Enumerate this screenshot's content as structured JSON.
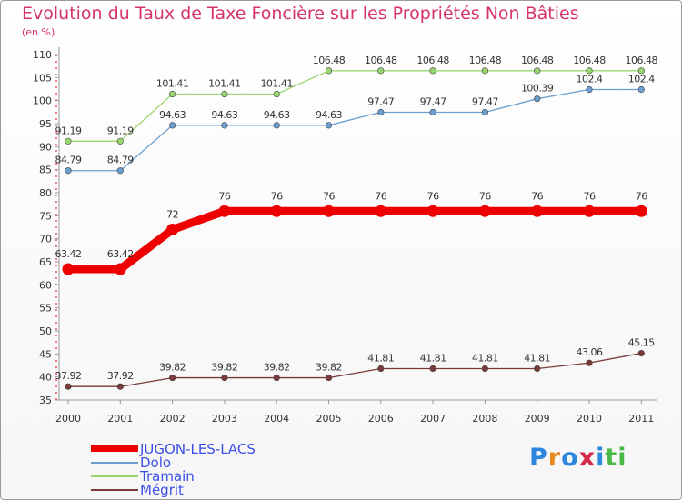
{
  "title": "Evolution du Taux de Taxe Foncière sur les Propriétés Non Bâties",
  "subtitle": "(en %)",
  "logo": {
    "text": "Proxiti",
    "letters": [
      {
        "ch": "P",
        "color": "#2e86de"
      },
      {
        "ch": "r",
        "color": "#e8891e"
      },
      {
        "ch": "o",
        "color": "#2e86de"
      },
      {
        "ch": "x",
        "color": "#d62a4b"
      },
      {
        "ch": "i",
        "color": "#2e86de"
      },
      {
        "ch": "t",
        "color": "#49b847"
      },
      {
        "ch": "i",
        "color": "#49b847"
      }
    ]
  },
  "chart_data": {
    "type": "line",
    "title": "Evolution du Taux de Taxe Foncière sur les Propriétés Non Bâties",
    "ylabel": "(en %)",
    "x": [
      "2000",
      "2001",
      "2002",
      "2003",
      "2004",
      "2005",
      "2006",
      "2007",
      "2008",
      "2009",
      "2010",
      "2011"
    ],
    "ylim": [
      35,
      110
    ],
    "yticks": [
      35,
      40,
      45,
      50,
      55,
      60,
      65,
      70,
      75,
      80,
      85,
      90,
      95,
      100,
      105,
      110
    ],
    "grid": false,
    "legend_position": "bottom-left",
    "series": [
      {
        "name": "JUGON-LES-LACS",
        "color": "#ee0000",
        "bold": true,
        "values": [
          63.42,
          63.42,
          72,
          76,
          76,
          76,
          76,
          76,
          76,
          76,
          76,
          76
        ],
        "labels": [
          "63.42",
          "63.42",
          "72",
          "76",
          "76",
          "76",
          "76",
          "76",
          "76",
          "76",
          "76",
          "76"
        ]
      },
      {
        "name": "Dolo",
        "color": "#6a9fcf",
        "values": [
          84.79,
          84.79,
          94.63,
          94.63,
          94.63,
          94.63,
          97.47,
          97.47,
          97.47,
          100.39,
          102.4,
          102.4
        ],
        "labels": [
          "84.79",
          "84.79",
          "94.63",
          "94.63",
          "94.63",
          "94.63",
          "97.47",
          "97.47",
          "97.47",
          "100.39",
          "102.4",
          "102.4"
        ]
      },
      {
        "name": "Tramain",
        "color": "#9ad66e",
        "values": [
          91.19,
          91.19,
          101.41,
          101.41,
          101.41,
          106.48,
          106.48,
          106.48,
          106.48,
          106.48,
          106.48,
          106.48
        ],
        "labels": [
          "91.19",
          "91.19",
          "101.41",
          "101.41",
          "101.41",
          "106.48",
          "106.48",
          "106.48",
          "106.48",
          "106.48",
          "106.48",
          "106.48"
        ]
      },
      {
        "name": "Mégrit",
        "color": "#7a3a3a",
        "values": [
          37.92,
          37.92,
          39.82,
          39.82,
          39.82,
          39.82,
          41.81,
          41.81,
          41.81,
          41.81,
          43.06,
          45.15
        ],
        "labels": [
          "37.92",
          "37.92",
          "39.82",
          "39.82",
          "39.82",
          "39.82",
          "41.81",
          "41.81",
          "41.81",
          "41.81",
          "43.06",
          "45.15"
        ]
      }
    ]
  }
}
